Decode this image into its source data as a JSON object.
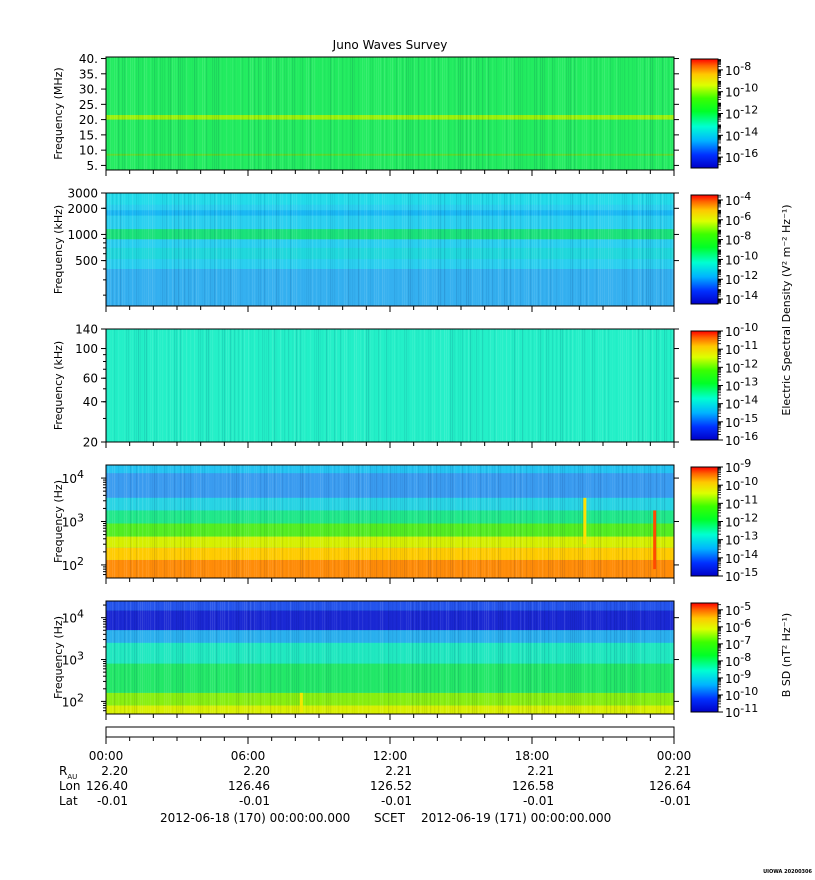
{
  "title": "Juno Waves Survey",
  "footer": {
    "start": "2012-06-18 (170) 00:00:00.000",
    "mid": "SCET",
    "end": "2012-06-19 (171) 00:00:00.000",
    "stamp": "UIOWA 20200306"
  },
  "time_axis": {
    "ticks": [
      "00:00",
      "06:00",
      "12:00",
      "18:00",
      "00:00"
    ],
    "rows": [
      {
        "label": "R",
        "sub": "AU",
        "values": [
          "2.20",
          "2.20",
          "2.21",
          "2.21",
          "2.21"
        ]
      },
      {
        "label": "Lon",
        "sub": "",
        "values": [
          "126.40",
          "126.46",
          "126.52",
          "126.58",
          "126.64"
        ]
      },
      {
        "label": "Lat",
        "sub": "",
        "values": [
          "-0.01",
          "-0.01",
          "-0.01",
          "-0.01",
          "-0.01"
        ]
      }
    ]
  },
  "colorbar_labels": {
    "e": "Electric Spectral Density (V² m⁻² Hz⁻¹)",
    "b": "B SD (nT² Hz⁻¹)"
  },
  "chart_data": [
    {
      "type": "heatmap",
      "ylabel": "Frequency (MHz)",
      "yscale": "linear",
      "ylim": [
        3.5,
        40.5
      ],
      "yticks": [
        {
          "v": 5,
          "label": "5."
        },
        {
          "v": 10,
          "label": "10."
        },
        {
          "v": 15,
          "label": "15."
        },
        {
          "v": 20,
          "label": "20."
        },
        {
          "v": 25,
          "label": "25."
        },
        {
          "v": 30,
          "label": "30."
        },
        {
          "v": 35,
          "label": "35."
        },
        {
          "v": 40,
          "label": "40."
        }
      ],
      "colorbar": {
        "min_exp": -17,
        "max_exp": -7,
        "label_exps": [
          -16,
          -14,
          -12,
          -10,
          -8
        ]
      },
      "base_color": "#22ec60",
      "bands": [
        {
          "from": 21.5,
          "to": 20.0,
          "color": "#9af20a"
        },
        {
          "from": 8.8,
          "to": 8.2,
          "color": "#5ad92a"
        }
      ]
    },
    {
      "type": "heatmap",
      "ylabel": "Frequency (kHz)",
      "yscale": "log",
      "ylim": [
        150,
        3000
      ],
      "yticks": [
        {
          "v": 500,
          "label": "500"
        },
        {
          "v": 1000,
          "label": "1000"
        },
        {
          "v": 2000,
          "label": "2000"
        },
        {
          "v": 3000,
          "label": "3000"
        }
      ],
      "colorbar": {
        "min_exp": -14.5,
        "max_exp": -3.5,
        "label_exps": [
          -14,
          -12,
          -10,
          -8,
          -6,
          -4
        ]
      },
      "base_color": "#2ad0f0",
      "bands": [
        {
          "from": 3000,
          "to": 2200,
          "color": "#22dcea"
        },
        {
          "from": 1900,
          "to": 1650,
          "color": "#1ab8f4"
        },
        {
          "from": 1150,
          "to": 880,
          "color": "#1ae27a"
        },
        {
          "from": 700,
          "to": 520,
          "color": "#20d8dc"
        },
        {
          "from": 400,
          "to": 150,
          "color": "#34b0f0"
        }
      ]
    },
    {
      "type": "heatmap",
      "ylabel": "Frequency (kHz)",
      "yscale": "log",
      "ylim": [
        20,
        140
      ],
      "yticks": [
        {
          "v": 20,
          "label": "20"
        },
        {
          "v": 40,
          "label": "40"
        },
        {
          "v": 60,
          "label": "60"
        },
        {
          "v": 100,
          "label": "100"
        },
        {
          "v": 140,
          "label": "140"
        }
      ],
      "colorbar": {
        "min_exp": -16,
        "max_exp": -10,
        "label_exps": [
          -16,
          -15,
          -14,
          -13,
          -12,
          -11,
          -10
        ]
      },
      "base_color": "#23f0c8",
      "bands": []
    },
    {
      "type": "heatmap",
      "ylabel": "Frequency (Hz)",
      "yscale": "log",
      "ylim": [
        50,
        20000
      ],
      "yticks": [
        {
          "v": 100,
          "label": "10",
          "exp": "2"
        },
        {
          "v": 1000,
          "label": "10",
          "exp": "3"
        },
        {
          "v": 10000,
          "label": "10",
          "exp": "4"
        }
      ],
      "colorbar": {
        "min_exp": -15,
        "max_exp": -9,
        "label_exps": [
          -15,
          -14,
          -13,
          -12,
          -11,
          -10,
          -9
        ]
      },
      "base_color": "#28d8e8",
      "bands": [
        {
          "from": 20000,
          "to": 13000,
          "color": "#24c4f2"
        },
        {
          "from": 13000,
          "to": 3500,
          "color": "#3a9cf0"
        },
        {
          "from": 3500,
          "to": 1800,
          "color": "#28d4e4"
        },
        {
          "from": 1800,
          "to": 900,
          "color": "#20e88a"
        },
        {
          "from": 900,
          "to": 450,
          "color": "#52ee22"
        },
        {
          "from": 450,
          "to": 250,
          "color": "#d6f000"
        },
        {
          "from": 250,
          "to": 130,
          "color": "#ffcc00"
        },
        {
          "from": 130,
          "to": 50,
          "color": "#ff8c08"
        }
      ],
      "features": [
        {
          "t": 0.843,
          "f_from": 3500,
          "f_to": 300,
          "color": "#ffe000"
        },
        {
          "t": 0.966,
          "f_from": 1800,
          "f_to": 80,
          "color": "#ff4a00"
        }
      ]
    },
    {
      "type": "heatmap",
      "ylabel": "Frequency (Hz)",
      "yscale": "log",
      "ylim": [
        50,
        25000
      ],
      "yticks": [
        {
          "v": 100,
          "label": "10",
          "exp": "2"
        },
        {
          "v": 1000,
          "label": "10",
          "exp": "3"
        },
        {
          "v": 10000,
          "label": "10",
          "exp": "4"
        }
      ],
      "colorbar": {
        "min_exp": -11,
        "max_exp": -4.6,
        "label_exps": [
          -11,
          -10,
          -9,
          -8,
          -7,
          -6,
          -5
        ]
      },
      "base_color": "#22d0e8",
      "bands": [
        {
          "from": 25000,
          "to": 15000,
          "color": "#2454ec"
        },
        {
          "from": 15000,
          "to": 5000,
          "color": "#1a28d4"
        },
        {
          "from": 5000,
          "to": 2500,
          "color": "#2ab0ee"
        },
        {
          "from": 2500,
          "to": 800,
          "color": "#20e8c0"
        },
        {
          "from": 800,
          "to": 160,
          "color": "#22e868"
        },
        {
          "from": 160,
          "to": 80,
          "color": "#88f010"
        },
        {
          "from": 80,
          "to": 50,
          "color": "#d8f000"
        }
      ],
      "features": [
        {
          "t": 0.344,
          "f_from": 160,
          "f_to": 55,
          "color": "#f0e800"
        }
      ]
    }
  ]
}
